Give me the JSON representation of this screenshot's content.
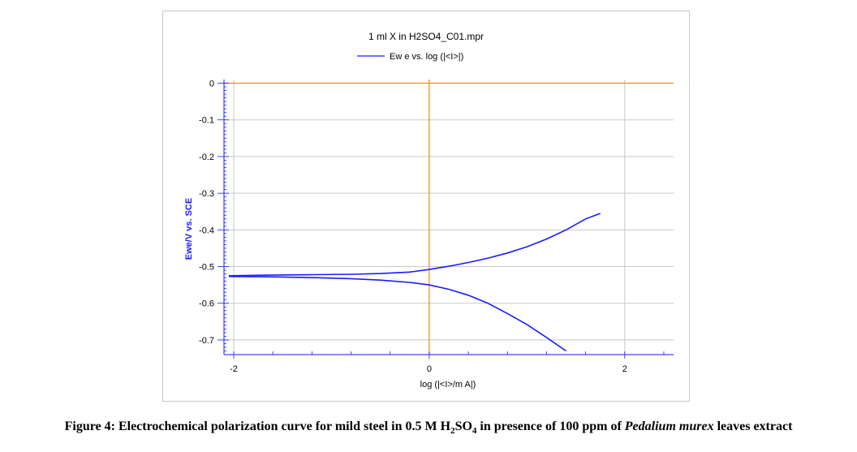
{
  "figure": {
    "caption_prefix": "Figure 4: Electrochemical polarization curve for mild steel in 0.5 M H",
    "caption_sub1": "2",
    "caption_mid": "SO",
    "caption_sub2": "4",
    "caption_mid2": " in presence of 100 ppm of ",
    "caption_italic": "Pedalium murex",
    "caption_suffix": " leaves extract"
  },
  "chart_data": {
    "type": "line",
    "title": "1 ml X in H2SO4_C01.mpr",
    "legend": "Ew e vs. log (|<I>|)",
    "xlabel": "log (|<I>/m A|)",
    "ylabel": "Ewe/V vs. SCE",
    "xlim": [
      -2.1,
      2.5
    ],
    "ylim": [
      -0.74,
      0.01
    ],
    "xticks": [
      -2,
      0,
      2
    ],
    "yticks": [
      0,
      -0.1,
      -0.2,
      -0.3,
      -0.4,
      -0.5,
      -0.6,
      -0.7
    ],
    "ytick_labels": [
      "0",
      "-0.1",
      "-0.2",
      "-0.3",
      "-0.4",
      "-0.5",
      "-0.6",
      "-0.7"
    ],
    "xtick_labels": [
      "-2",
      "0",
      "2"
    ],
    "grid": true,
    "colors": {
      "series": "#1a1aff",
      "reference": "#f08a1c",
      "grid": "#c8c8c8"
    },
    "reference_lines": {
      "x": 0,
      "y": 0
    },
    "series": [
      {
        "name": "Ew e vs. log (|<I>|)",
        "segment": "anodic",
        "x": [
          -2.05,
          -1.6,
          -1.2,
          -0.8,
          -0.5,
          -0.2,
          0.0,
          0.2,
          0.4,
          0.6,
          0.8,
          1.0,
          1.2,
          1.4,
          1.6,
          1.75
        ],
        "y": [
          -0.525,
          -0.523,
          -0.522,
          -0.521,
          -0.519,
          -0.515,
          -0.508,
          -0.499,
          -0.489,
          -0.477,
          -0.463,
          -0.446,
          -0.425,
          -0.4,
          -0.37,
          -0.355
        ]
      },
      {
        "name": "Ew e vs. log (|<I>|)",
        "segment": "cathodic",
        "x": [
          -2.05,
          -1.6,
          -1.2,
          -0.8,
          -0.5,
          -0.2,
          0.0,
          0.2,
          0.4,
          0.6,
          0.8,
          1.0,
          1.2,
          1.4
        ],
        "y": [
          -0.527,
          -0.528,
          -0.53,
          -0.533,
          -0.537,
          -0.543,
          -0.55,
          -0.562,
          -0.578,
          -0.6,
          -0.628,
          -0.658,
          -0.693,
          -0.73
        ]
      }
    ]
  }
}
